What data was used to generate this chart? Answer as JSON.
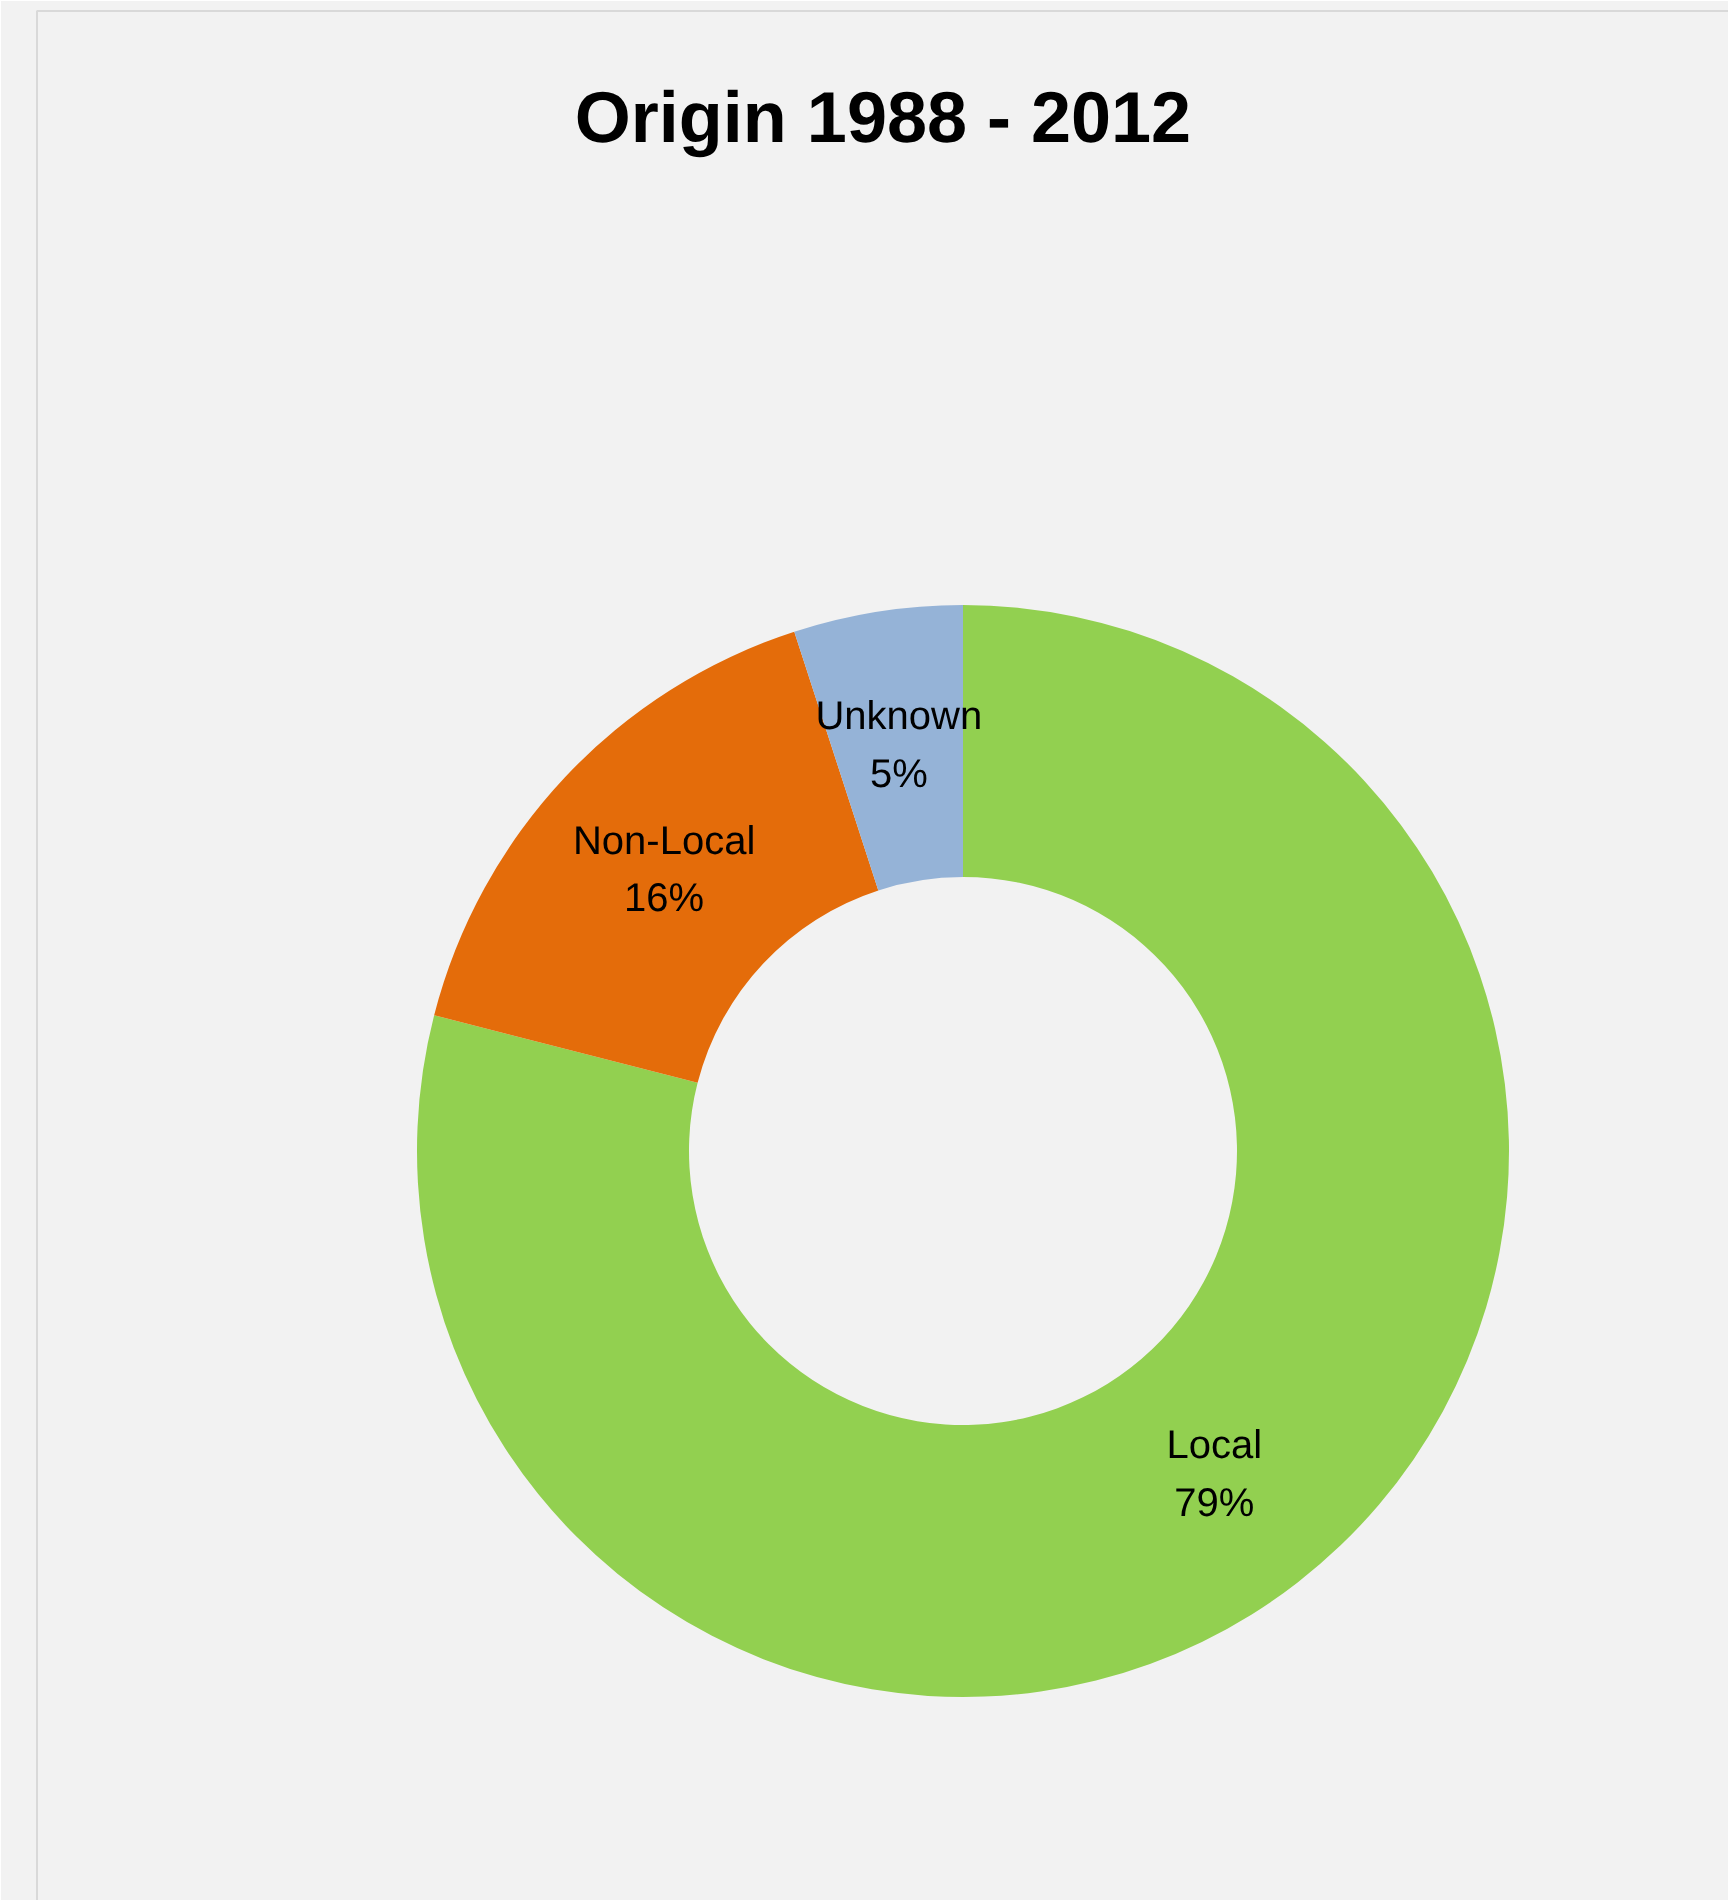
{
  "chart_data": {
    "type": "donut",
    "title": "Origin 1988 - 2012",
    "categories": [
      "Local",
      "Non-Local",
      "Unknown"
    ],
    "values": [
      79,
      16,
      5
    ],
    "colors": [
      "#92d050",
      "#e46c0a",
      "#95b3d7"
    ],
    "value_labels": [
      "79%",
      "16%",
      "5%"
    ]
  }
}
